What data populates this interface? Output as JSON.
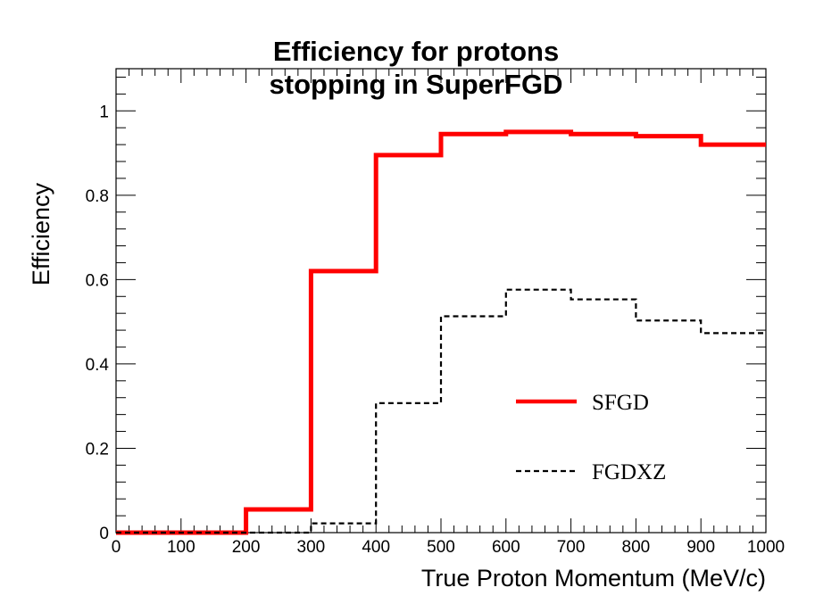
{
  "chart_data": {
    "type": "line",
    "title": [
      "Efficiency for protons",
      "stopping in SuperFGD"
    ],
    "xlabel": "True Proton Momentum (MeV/c)",
    "ylabel": "Efficiency",
    "xlim": [
      0,
      1000
    ],
    "ylim": [
      0,
      1.1
    ],
    "xticks": [
      0,
      100,
      200,
      300,
      400,
      500,
      600,
      700,
      800,
      900,
      1000
    ],
    "yticks": [
      0,
      0.2,
      0.4,
      0.6,
      0.8,
      1
    ],
    "ytick_labels": [
      "0",
      "0.2",
      "0.4",
      "0.6",
      "0.8",
      "1"
    ],
    "bin_edges": [
      0,
      100,
      200,
      300,
      400,
      500,
      600,
      700,
      800,
      900,
      1000
    ],
    "series": [
      {
        "name": "SFGD",
        "style": "solid",
        "color": "#ff0000",
        "values": [
          0.0,
          0.0,
          0.055,
          0.62,
          0.895,
          0.945,
          0.95,
          0.945,
          0.94,
          0.92
        ]
      },
      {
        "name": "FGDXZ",
        "style": "dashed",
        "color": "#000000",
        "values": [
          0.0,
          0.0,
          0.0,
          0.022,
          0.307,
          0.513,
          0.576,
          0.553,
          0.503,
          0.473
        ]
      }
    ],
    "legend_position": "bottom-right",
    "grid": false
  }
}
